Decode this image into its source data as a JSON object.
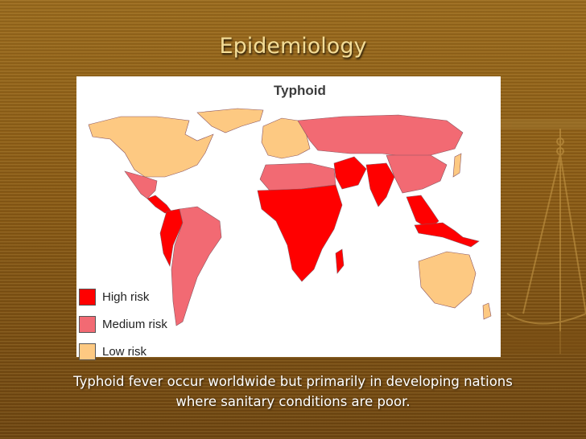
{
  "slide": {
    "title": "Epidemiology",
    "caption_line1": "Typhoid fever occur worldwide but primarily in developing nations",
    "caption_line2": "where sanitary conditions are poor."
  },
  "map": {
    "title": "Typhoid",
    "legend": [
      {
        "label": "High risk",
        "color": "#ff0000"
      },
      {
        "label": "Medium risk",
        "color": "#f26a73"
      },
      {
        "label": "Low risk",
        "color": "#fdc982"
      }
    ]
  },
  "colors": {
    "high": "#ff0000",
    "medium": "#f26a73",
    "low": "#fdc982",
    "title_text": "#f3dc96",
    "background": "#8a5a14"
  },
  "decor": {
    "background_motif": "scales-of-justice-icon"
  }
}
